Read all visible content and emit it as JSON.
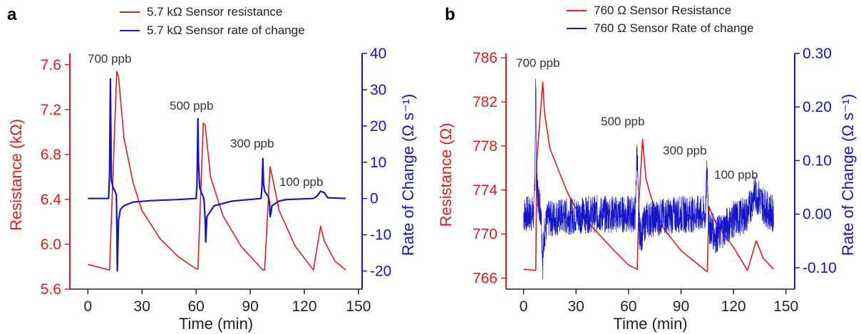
{
  "colors": {
    "red": "#e01b1b",
    "blue": "#1414c8",
    "axis": "#222222"
  },
  "chart_data": [
    {
      "panel": "a",
      "type": "line",
      "xlabel": "Time (min)",
      "ylabel_left": "Resistance (kΩ)",
      "ylabel_right": "Rate of Change (Ω s⁻¹)",
      "xlim": [
        -10,
        152
      ],
      "xticks": [
        0,
        30,
        60,
        90,
        120,
        150
      ],
      "ylim_left": [
        5.6,
        7.7
      ],
      "yticks_left": [
        "5.6",
        "6.0",
        "6.4",
        "6.8",
        "7.2",
        "7.6"
      ],
      "ylim_right": [
        -25,
        40
      ],
      "yticks_right": [
        "-20",
        "-10",
        "0",
        "10",
        "20",
        "30",
        "40"
      ],
      "grid": false,
      "legend": {
        "placement": "top",
        "entries": [
          "5.7 kΩ Sensor resistance",
          "5.7 kΩ Sensor rate of change"
        ]
      },
      "annotations": [
        {
          "text": "700 ppb",
          "x": 12,
          "y": 7.65
        },
        {
          "text": "500 ppb",
          "x": 60,
          "y": 7.22
        },
        {
          "text": "300 ppb",
          "x": 96,
          "y": 6.9
        },
        {
          "text": "100 ppb",
          "x": 124,
          "y": 6.47
        }
      ],
      "series": [
        {
          "name": "5.7 kΩ Sensor resistance",
          "axis": "left",
          "x": [
            0,
            12,
            16,
            17,
            20,
            25,
            30,
            40,
            50,
            60,
            61,
            64,
            65,
            68,
            75,
            85,
            97,
            98,
            101,
            102,
            106,
            115,
            125,
            129,
            131,
            137,
            143
          ],
          "y": [
            5.82,
            5.77,
            7.54,
            7.49,
            6.95,
            6.55,
            6.3,
            6.05,
            5.89,
            5.78,
            5.78,
            7.08,
            7.06,
            6.6,
            6.25,
            5.98,
            5.77,
            5.77,
            6.69,
            6.62,
            6.3,
            5.98,
            5.77,
            6.16,
            6.03,
            5.85,
            5.77
          ]
        },
        {
          "name": "5.7 kΩ Sensor rate of change",
          "axis": "right",
          "x": [
            0,
            11.5,
            12,
            12.5,
            13,
            14,
            15,
            15.8,
            16,
            16.3,
            17,
            18,
            20,
            25,
            35,
            50,
            60,
            60.5,
            61,
            61.3,
            62,
            63,
            64,
            64.5,
            65,
            65.3,
            66,
            70,
            80,
            96,
            96.5,
            97,
            97.4,
            98,
            100,
            100.7,
            101,
            101.5,
            102,
            106,
            110,
            125,
            127,
            129,
            131,
            133,
            143
          ],
          "y": [
            0,
            0,
            7,
            33,
            5,
            3,
            2,
            1,
            -6,
            -20,
            -6,
            -3,
            -2,
            -1,
            -0.6,
            -0.3,
            0,
            4,
            22,
            10,
            3,
            1.5,
            0.5,
            -1,
            -6,
            -12,
            -5,
            -2,
            -0.7,
            0,
            3,
            11,
            4,
            2,
            0.5,
            -1,
            -5,
            -4,
            -2,
            -0.7,
            -0.3,
            0,
            0.6,
            2,
            1.6,
            0.2,
            0
          ]
        }
      ]
    },
    {
      "panel": "b",
      "type": "line",
      "xlabel": "Time (min)",
      "ylabel_left": "Resistance (Ω)",
      "ylabel_right": "Rate of Change (Ω s⁻¹)",
      "xlim": [
        -10,
        155
      ],
      "xticks": [
        0,
        30,
        60,
        90,
        120,
        150
      ],
      "ylim_left": [
        765,
        786.4
      ],
      "yticks_left": [
        "766",
        "770",
        "774",
        "778",
        "782",
        "786"
      ],
      "ylim_right": [
        -0.14,
        0.3
      ],
      "yticks_right": [
        "-0.10",
        "0.00",
        "0.10",
        "0.20",
        "0.30"
      ],
      "grid": false,
      "legend": {
        "placement": "top",
        "entries": [
          "760 Ω Sensor Resistance",
          "760 Ω Sensor Rate of change"
        ]
      },
      "annotations": [
        {
          "text": "700 ppb",
          "x": 9,
          "y": 785
        },
        {
          "text": "500 ppb",
          "x": 68,
          "y": 777.7
        },
        {
          "text": "300 ppb",
          "x": 89,
          "y": 776.9
        },
        {
          "text": "100 ppb",
          "x": 122,
          "y": 773.6
        }
      ],
      "series": [
        {
          "name": "760 Ω Sensor Resistance",
          "axis": "left",
          "x": [
            0,
            7,
            7.5,
            11,
            12,
            15,
            20,
            25,
            30,
            40,
            50,
            60,
            65,
            66,
            68,
            70,
            73,
            80,
            90,
            104,
            105,
            106,
            110,
            120,
            128,
            133,
            137,
            143
          ],
          "y": [
            766.8,
            766.7,
            776.5,
            783.8,
            781.0,
            777.8,
            775.8,
            773.8,
            772.3,
            770.5,
            768.8,
            767.2,
            766.8,
            773,
            778.6,
            775.0,
            773.3,
            770.5,
            768.5,
            766.7,
            766.6,
            772.5,
            771.0,
            768.8,
            766.7,
            769.4,
            767.8,
            766.8
          ]
        },
        {
          "name": "760 Ω Sensor Rate of change",
          "axis": "right",
          "noise_amplitude": 0.035,
          "x": [
            0,
            6,
            6.5,
            7,
            7.5,
            8,
            9,
            10,
            10.5,
            11,
            12,
            14,
            20,
            40,
            60,
            64,
            64.5,
            65,
            65.5,
            66,
            67,
            70,
            90,
            104,
            104.5,
            105,
            105.5,
            106,
            110,
            120,
            128,
            130,
            132,
            140,
            143
          ],
          "y": [
            0,
            0,
            0.08,
            0.25,
            0.06,
            0.04,
            0.02,
            0.01,
            -0.04,
            -0.09,
            -0.03,
            -0.01,
            -0.005,
            0,
            0,
            0,
            0.09,
            0.12,
            0.03,
            -0.02,
            -0.04,
            -0.01,
            0,
            0,
            0.05,
            0.09,
            0.02,
            -0.02,
            -0.04,
            -0.01,
            0,
            0.02,
            0.04,
            0.005,
            0
          ]
        }
      ]
    }
  ]
}
